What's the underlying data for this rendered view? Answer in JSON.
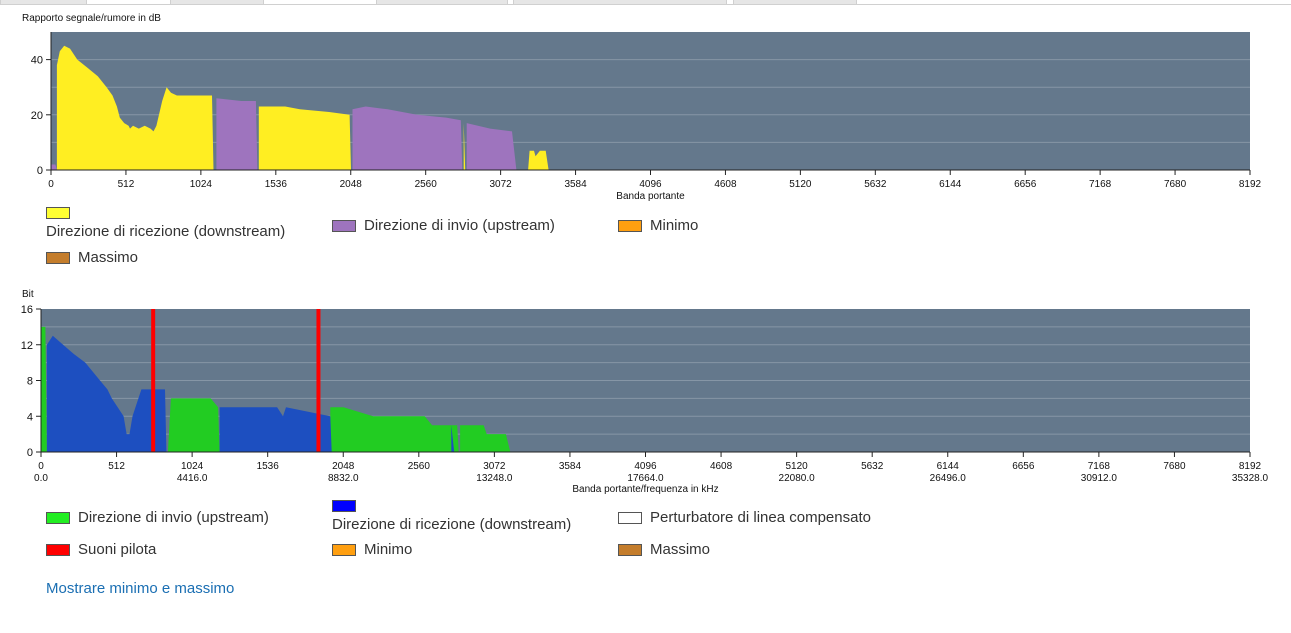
{
  "chart_data": [
    {
      "type": "area",
      "ylabel": "Rapporto segnale/rumore in dB",
      "xlabel": "Banda portante",
      "xlim": [
        0,
        8192
      ],
      "ylim": [
        0,
        50
      ],
      "x_ticks": [
        0,
        512,
        1024,
        1536,
        2048,
        2560,
        3072,
        3584,
        4096,
        4608,
        5120,
        5632,
        6144,
        6656,
        7168,
        7680,
        8192
      ],
      "y_ticks": [
        0,
        20,
        40
      ],
      "grid": true,
      "series": [
        {
          "name": "Direzione di ricezione  (downstream)",
          "color": "#ffee22",
          "points": [
            [
              40,
              0
            ],
            [
              40,
              38
            ],
            [
              60,
              43
            ],
            [
              90,
              45
            ],
            [
              130,
              44
            ],
            [
              180,
              40
            ],
            [
              250,
              37
            ],
            [
              320,
              34
            ],
            [
              380,
              30
            ],
            [
              420,
              27
            ],
            [
              450,
              23
            ],
            [
              470,
              19
            ],
            [
              500,
              17
            ],
            [
              530,
              16
            ],
            [
              540,
              15
            ],
            [
              560,
              16
            ],
            [
              600,
              15
            ],
            [
              640,
              16
            ],
            [
              680,
              15
            ],
            [
              700,
              14
            ],
            [
              720,
              16
            ],
            [
              760,
              25
            ],
            [
              790,
              30
            ],
            [
              820,
              28
            ],
            [
              860,
              27
            ],
            [
              950,
              27
            ],
            [
              1050,
              27
            ],
            [
              1100,
              27
            ],
            [
              1110,
              0
            ],
            [
              1420,
              0
            ],
            [
              1420,
              23
            ],
            [
              1600,
              23
            ],
            [
              1700,
              22
            ],
            [
              1900,
              21
            ],
            [
              2040,
              20
            ],
            [
              2050,
              0
            ],
            [
              2820,
              0
            ],
            [
              2820,
              17
            ],
            [
              2830,
              0
            ],
            [
              3260,
              0
            ],
            [
              3270,
              7
            ],
            [
              3300,
              7
            ],
            [
              3310,
              5
            ],
            [
              3340,
              7
            ],
            [
              3380,
              7
            ],
            [
              3400,
              0
            ]
          ]
        },
        {
          "name": "Direzione di invio  (upstream)",
          "color": "#9e74be",
          "points": [
            [
              0,
              0
            ],
            [
              0,
              2
            ],
            [
              30,
              2
            ],
            [
              40,
              0
            ],
            [
              1130,
              0
            ],
            [
              1130,
              26
            ],
            [
              1300,
              25
            ],
            [
              1400,
              25
            ],
            [
              1410,
              0
            ],
            [
              2060,
              0
            ],
            [
              2060,
              22
            ],
            [
              2150,
              23
            ],
            [
              2300,
              22
            ],
            [
              2500,
              20
            ],
            [
              2700,
              19
            ],
            [
              2800,
              18
            ],
            [
              2810,
              0
            ],
            [
              2840,
              0
            ],
            [
              2840,
              17
            ],
            [
              3000,
              15
            ],
            [
              3150,
              14
            ],
            [
              3180,
              0
            ]
          ]
        },
        {
          "name": "Minimo",
          "color": "#ff9f10",
          "points": []
        },
        {
          "name": "Massimo",
          "color": "#c47d2c",
          "points": []
        }
      ]
    },
    {
      "type": "area",
      "ylabel": "Bit",
      "xlabel": "Banda portante/frequenza in kHz",
      "xlim": [
        0,
        8192
      ],
      "ylim": [
        0,
        16
      ],
      "x_ticks": [
        0,
        512,
        1024,
        1536,
        2048,
        2560,
        3072,
        3584,
        4096,
        4608,
        5120,
        5632,
        6144,
        6656,
        7168,
        7680,
        8192
      ],
      "x_ticks_khz": [
        "0.0",
        "4416.0",
        "8832.0",
        "13248.0",
        "17664.0",
        "22080.0",
        "26496.0",
        "30912.0",
        "35328.0"
      ],
      "y_ticks": [
        0,
        4,
        8,
        12,
        16
      ],
      "grid": true,
      "series": [
        {
          "name": "Direzione di invio  (upstream)",
          "color": "#22cc22",
          "points": [
            [
              0,
              0
            ],
            [
              0,
              14
            ],
            [
              30,
              14
            ],
            [
              40,
              0
            ],
            [
              860,
              0
            ],
            [
              880,
              6
            ],
            [
              1150,
              6
            ],
            [
              1200,
              5
            ],
            [
              1210,
              0
            ],
            [
              1960,
              0
            ],
            [
              1960,
              5
            ],
            [
              2050,
              5
            ],
            [
              2250,
              4
            ],
            [
              2600,
              4
            ],
            [
              2650,
              3
            ],
            [
              2820,
              3
            ],
            [
              2830,
              0
            ],
            [
              2840,
              0
            ],
            [
              2840,
              3
            ],
            [
              3000,
              3
            ],
            [
              3020,
              2
            ],
            [
              3150,
              2
            ],
            [
              3180,
              0
            ]
          ]
        },
        {
          "name": "Direzione di ricezione  (downstream)",
          "color": "#1d4fc0",
          "points": [
            [
              40,
              0
            ],
            [
              40,
              12
            ],
            [
              80,
              13
            ],
            [
              150,
              12
            ],
            [
              220,
              11
            ],
            [
              300,
              10
            ],
            [
              350,
              9
            ],
            [
              400,
              8
            ],
            [
              450,
              7
            ],
            [
              480,
              6
            ],
            [
              520,
              5
            ],
            [
              560,
              4
            ],
            [
              580,
              2
            ],
            [
              600,
              2
            ],
            [
              620,
              4
            ],
            [
              660,
              6
            ],
            [
              680,
              7
            ],
            [
              760,
              7
            ],
            [
              840,
              7
            ],
            [
              850,
              0
            ],
            [
              1210,
              0
            ],
            [
              1210,
              5
            ],
            [
              1600,
              5
            ],
            [
              1640,
              4
            ],
            [
              1660,
              5
            ],
            [
              1960,
              4
            ],
            [
              1970,
              0
            ],
            [
              2780,
              0
            ],
            [
              2780,
              3
            ],
            [
              2800,
              0
            ]
          ]
        },
        {
          "name": "Suoni pilota",
          "color": "#ff0000",
          "lines_at": [
            760,
            1880
          ]
        },
        {
          "name": "Perturbatore di linea compensato",
          "color": "#ffffff",
          "points": []
        },
        {
          "name": "Minimo",
          "color": "#ff9f10",
          "points": []
        },
        {
          "name": "Massimo",
          "color": "#c47d2c",
          "points": []
        }
      ]
    }
  ],
  "top": {
    "legend": [
      {
        "label": "Direzione di ricezione  (downstream)",
        "color": "#ffff33"
      },
      {
        "label": "Direzione di invio  (upstream)",
        "color": "#9e74be"
      },
      {
        "label": "Minimo",
        "color": "#ff9f10"
      },
      {
        "label": "Massimo",
        "color": "#c47d2c"
      }
    ]
  },
  "bottom": {
    "legend": [
      {
        "label": "Direzione di invio  (upstream)",
        "color": "#22ee22"
      },
      {
        "label": "Direzione di ricezione  (downstream)",
        "color": "#0000ff"
      },
      {
        "label": "Perturbatore di linea compensato",
        "color": "#ffffff"
      },
      {
        "label": "Suoni pilota",
        "color": "#ff0000"
      },
      {
        "label": "Minimo",
        "color": "#ff9f10"
      },
      {
        "label": "Massimo",
        "color": "#c47d2c"
      }
    ]
  },
  "link_label": "Mostrare minimo e massimo",
  "colors": {
    "plot_bg": "#64788c",
    "grid": "#8696a6",
    "axis": "#222222"
  }
}
